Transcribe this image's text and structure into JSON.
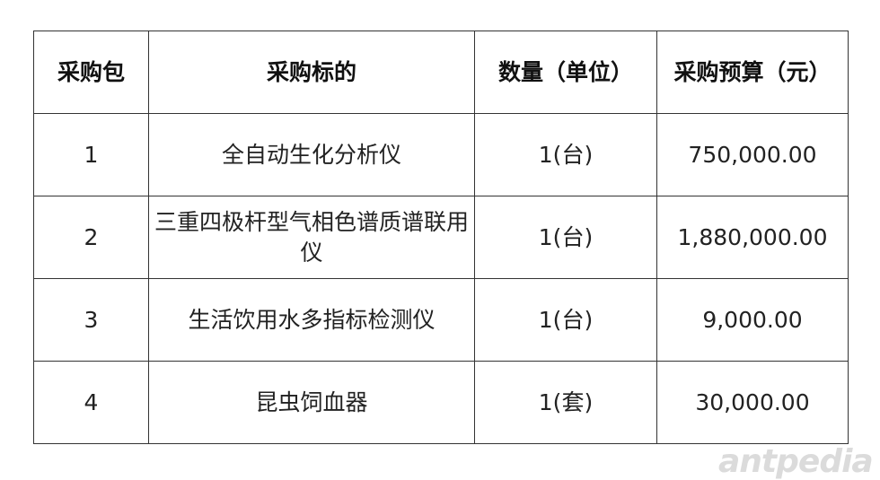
{
  "table": {
    "headers": [
      "采购包",
      "采购标的",
      "数量（单位）",
      "采购预算（元）"
    ],
    "rows": [
      [
        "1",
        "全自动生化分析仪",
        "1(台)",
        "750,000.00"
      ],
      [
        "2",
        "三重四极杆型气相色谱质谱联用仪",
        "1(台)",
        "1,880,000.00"
      ],
      [
        "3",
        "生活饮用水多指标检测仪",
        "1(台)",
        "9,000.00"
      ],
      [
        "4",
        "昆虫饲血器",
        "1(套)",
        "30,000.00"
      ]
    ]
  },
  "watermark": "antpedia"
}
